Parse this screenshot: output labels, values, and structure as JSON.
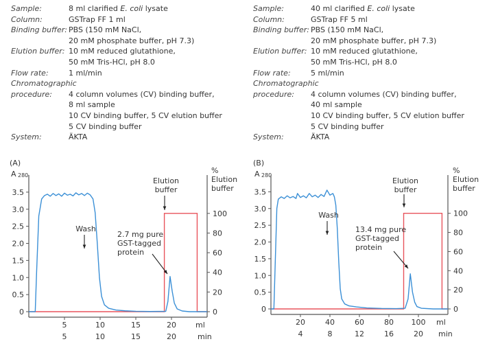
{
  "panels": [
    {
      "specs": [
        {
          "label": "Sample:",
          "value": [
            "8 ml clarified ",
            "E. coli",
            " lysate"
          ]
        },
        {
          "label": "Column:",
          "value": [
            "GSTrap FF 1 ml"
          ]
        },
        {
          "label": "Binding buffer:",
          "value": [
            "PBS (150 mM NaCl,",
            "20 mM phosphate buffer, pH 7.3)"
          ]
        },
        {
          "label": "Elution buffer:",
          "value": [
            "10 mM reduced glutathione,",
            "50 mM Tris-HCl, pH 8.0"
          ]
        },
        {
          "label": "Flow rate:",
          "value": [
            "1 ml/min"
          ]
        },
        {
          "label": "Chromatographic",
          "label2": "procedure:",
          "value": [
            "4 column volumes (CV) binding buffer,",
            "8 ml sample",
            "10 CV binding buffer, 5 CV elution buffer",
            "5 CV binding buffer"
          ]
        },
        {
          "label": "System:",
          "value": [
            "ÄKTA"
          ]
        }
      ]
    },
    {
      "specs": [
        {
          "label": "Sample:",
          "value": [
            "40 ml clarified ",
            "E. coli",
            " lysate"
          ]
        },
        {
          "label": "Column:",
          "value": [
            "GSTrap FF 5 ml"
          ]
        },
        {
          "label": "Binding buffer:",
          "value": [
            "PBS (150 mM NaCl,",
            "20 mM phosphate buffer, pH 7.3)"
          ]
        },
        {
          "label": "Elution buffer:",
          "value": [
            "10 mM reduced glutathione,",
            "50 mM Tris-HCl, pH 8.0"
          ]
        },
        {
          "label": "Flow rate:",
          "value": [
            "5 ml/min"
          ]
        },
        {
          "label": "Chromatographic",
          "label2": "procedure:",
          "value": [
            "4 column volumes (CV) binding buffer,",
            "40 ml sample",
            "10 CV binding buffer, 5 CV elution buffer",
            "5 CV binding buffer"
          ]
        },
        {
          "label": "System:",
          "value": [
            "ÄKTA"
          ]
        }
      ]
    }
  ],
  "chart_data": [
    {
      "type": "line",
      "panel_label": "(A)",
      "ylabel": "A",
      "ylabel_sub": "280",
      "y2label": [
        "%",
        "Elution",
        "buffer"
      ],
      "xlabel": "ml",
      "xlabel2": "min",
      "xlim": [
        0,
        25
      ],
      "ylim": [
        0,
        4
      ],
      "y2lim": [
        0,
        139
      ],
      "xticks": [
        5,
        10,
        15,
        20
      ],
      "xticks2": [
        "5",
        "10",
        "15",
        "20"
      ],
      "yticks": [
        0,
        0.5,
        1.0,
        1.5,
        2.0,
        2.5,
        3.0,
        3.5
      ],
      "ytick_labels": [
        "0",
        "0.5",
        "1.0",
        "1.5",
        "2.0",
        "2.5",
        "3.0",
        "3.5"
      ],
      "y2ticks": [
        0,
        20,
        40,
        60,
        80,
        100
      ],
      "colors": {
        "absorbance": "#3a8fd6",
        "elution": "#e8535b",
        "axis": "#555555"
      },
      "absorbance": [
        [
          0,
          0
        ],
        [
          0.9,
          0
        ],
        [
          1.1,
          1.2
        ],
        [
          1.4,
          2.8
        ],
        [
          1.8,
          3.3
        ],
        [
          2.2,
          3.4
        ],
        [
          2.6,
          3.44
        ],
        [
          3.0,
          3.38
        ],
        [
          3.4,
          3.46
        ],
        [
          3.8,
          3.4
        ],
        [
          4.2,
          3.45
        ],
        [
          4.6,
          3.38
        ],
        [
          5.0,
          3.47
        ],
        [
          5.4,
          3.41
        ],
        [
          5.8,
          3.44
        ],
        [
          6.2,
          3.39
        ],
        [
          6.6,
          3.48
        ],
        [
          7.0,
          3.42
        ],
        [
          7.4,
          3.46
        ],
        [
          7.8,
          3.4
        ],
        [
          8.2,
          3.47
        ],
        [
          8.6,
          3.42
        ],
        [
          9.0,
          3.3
        ],
        [
          9.3,
          2.9
        ],
        [
          9.6,
          2.0
        ],
        [
          9.9,
          1.0
        ],
        [
          10.2,
          0.45
        ],
        [
          10.6,
          0.2
        ],
        [
          11.2,
          0.1
        ],
        [
          12.2,
          0.05
        ],
        [
          13.5,
          0.025
        ],
        [
          15,
          0.012
        ],
        [
          17,
          0.005
        ],
        [
          19.2,
          0.01
        ],
        [
          19.5,
          0.3
        ],
        [
          19.8,
          1.03
        ],
        [
          20.1,
          0.6
        ],
        [
          20.4,
          0.25
        ],
        [
          20.8,
          0.08
        ],
        [
          21.5,
          0.02
        ],
        [
          22.5,
          0
        ],
        [
          25,
          0
        ]
      ],
      "elution_percent": [
        [
          0,
          0
        ],
        [
          19,
          0
        ],
        [
          19,
          100
        ],
        [
          23.6,
          100
        ],
        [
          23.6,
          0
        ],
        [
          25,
          0
        ]
      ],
      "annotations": {
        "elution": [
          "Elution",
          "buffer"
        ],
        "wash": "Wash",
        "protein": [
          "2.7 mg pure",
          "GST-tagged",
          "protein"
        ]
      }
    },
    {
      "type": "line",
      "panel_label": "(B)",
      "ylabel": "A",
      "ylabel_sub": "280",
      "y2label": [
        "%",
        "Elution",
        "buffer"
      ],
      "xlabel": "ml",
      "xlabel2": "min",
      "xlim": [
        0,
        120
      ],
      "ylim": [
        0,
        4
      ],
      "y2lim": [
        0,
        140
      ],
      "xticks": [
        20,
        40,
        60,
        80,
        100
      ],
      "xticks2": [
        "4",
        "8",
        "12",
        "16",
        "20"
      ],
      "yticks": [
        0,
        0.5,
        1.0,
        1.5,
        2.0,
        2.5,
        3.0,
        3.5
      ],
      "ytick_labels": [
        "0",
        "0.5",
        "1.0",
        "1.5",
        "2.0",
        "2.5",
        "3.0",
        "3.5"
      ],
      "y2ticks": [
        0,
        20,
        40,
        60,
        80,
        100
      ],
      "colors": {
        "absorbance": "#3a8fd6",
        "elution": "#e8535b",
        "axis": "#555555"
      },
      "absorbance": [
        [
          0,
          0
        ],
        [
          2,
          0
        ],
        [
          3,
          1.5
        ],
        [
          4,
          3.0
        ],
        [
          5,
          3.28
        ],
        [
          7,
          3.35
        ],
        [
          9,
          3.3
        ],
        [
          11,
          3.38
        ],
        [
          13,
          3.32
        ],
        [
          15,
          3.36
        ],
        [
          17,
          3.3
        ],
        [
          18,
          3.45
        ],
        [
          20,
          3.33
        ],
        [
          22,
          3.38
        ],
        [
          24,
          3.32
        ],
        [
          26,
          3.45
        ],
        [
          28,
          3.35
        ],
        [
          30,
          3.4
        ],
        [
          32,
          3.33
        ],
        [
          34,
          3.42
        ],
        [
          36,
          3.36
        ],
        [
          38,
          3.55
        ],
        [
          40,
          3.4
        ],
        [
          42,
          3.45
        ],
        [
          43,
          3.35
        ],
        [
          44,
          3.1
        ],
        [
          45,
          2.4
        ],
        [
          46,
          1.4
        ],
        [
          47,
          0.6
        ],
        [
          48,
          0.3
        ],
        [
          50,
          0.15
        ],
        [
          53,
          0.09
        ],
        [
          58,
          0.06
        ],
        [
          65,
          0.03
        ],
        [
          75,
          0.015
        ],
        [
          85,
          0.01
        ],
        [
          91,
          0.02
        ],
        [
          93,
          0.3
        ],
        [
          94.5,
          1.05
        ],
        [
          96,
          0.5
        ],
        [
          97.5,
          0.2
        ],
        [
          99,
          0.07
        ],
        [
          102,
          0.02
        ],
        [
          110,
          0
        ],
        [
          120,
          0
        ]
      ],
      "elution_percent": [
        [
          0,
          0
        ],
        [
          90,
          0
        ],
        [
          90,
          100
        ],
        [
          116,
          100
        ],
        [
          116,
          0
        ],
        [
          120,
          0
        ]
      ],
      "annotations": {
        "elution": [
          "Elution",
          "buffer"
        ],
        "wash": "Wash",
        "protein": [
          "13.4 mg pure",
          "GST-tagged",
          "protein"
        ]
      }
    }
  ]
}
